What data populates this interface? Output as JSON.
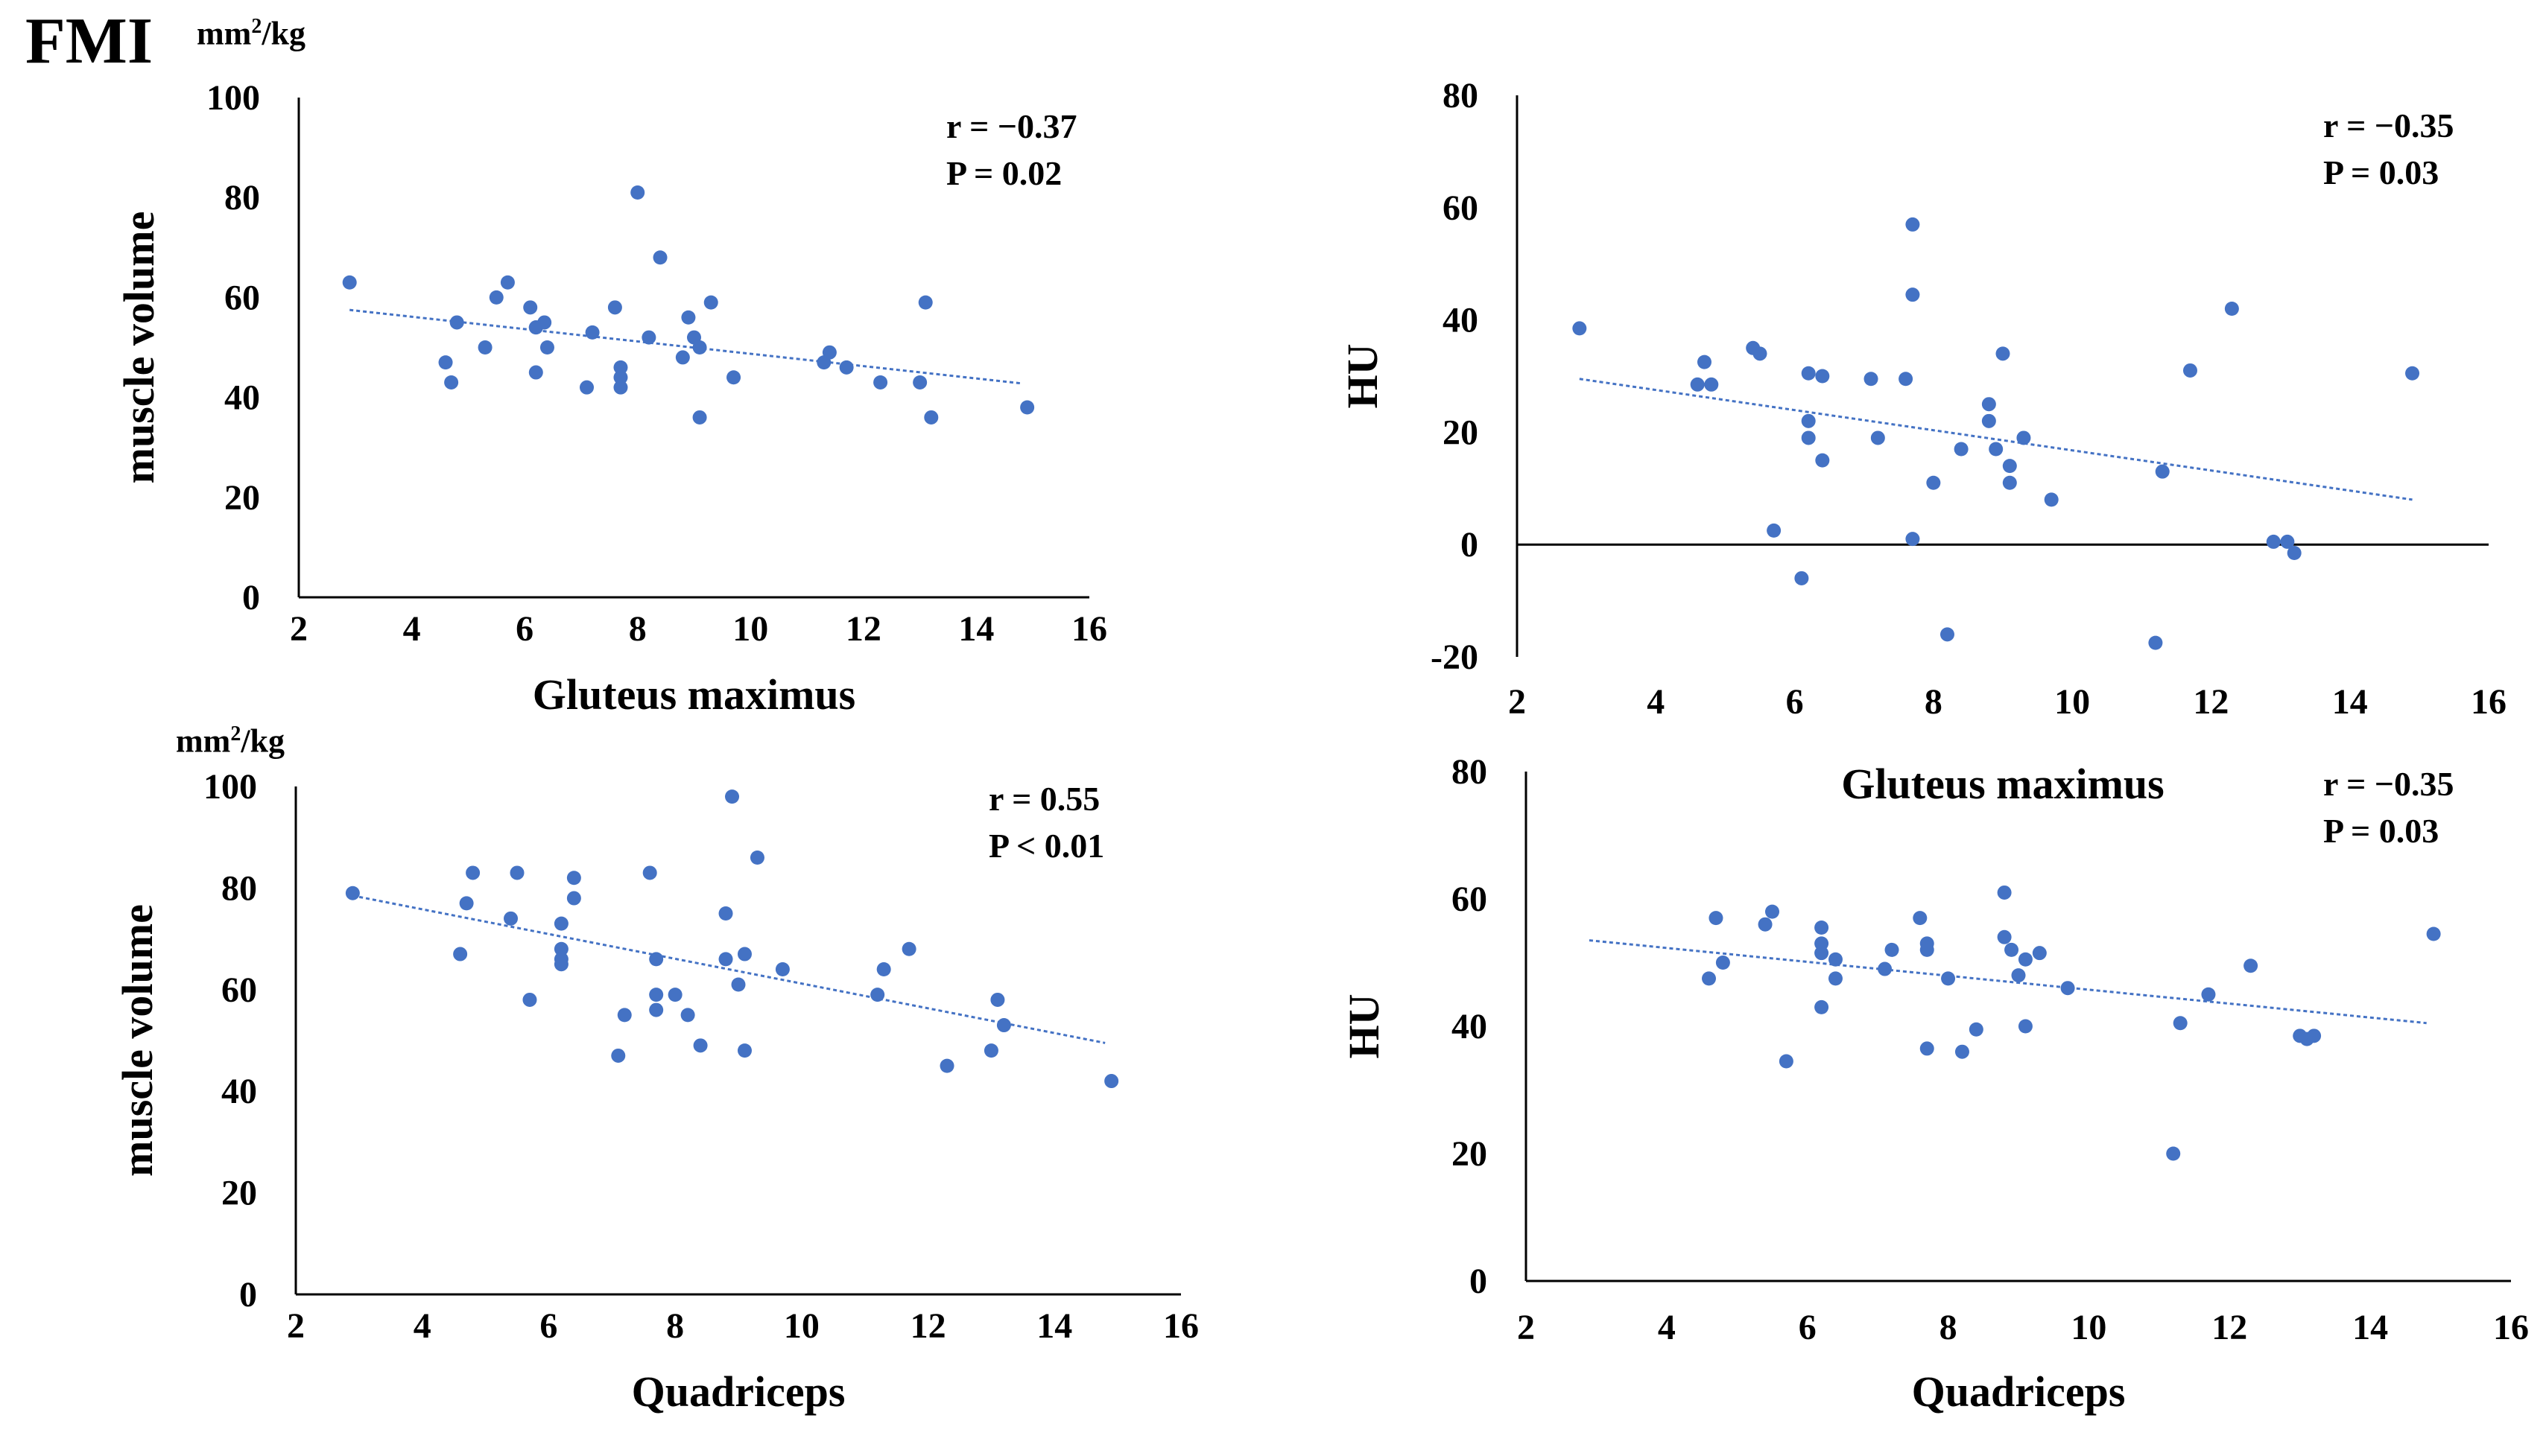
{
  "figure": {
    "label": "FMI"
  },
  "colors": {
    "point": "#4472C4",
    "trend": "#4472C4",
    "axis": "#000000"
  },
  "chart_data": [
    {
      "type": "scatter",
      "id": "p1",
      "xlabel": "Gluteus maximus",
      "ylabel": "muscle volume",
      "unit": "mm²/kg",
      "xlim": [
        2,
        16
      ],
      "ylim": [
        0,
        100
      ],
      "xticks": [
        2,
        4,
        6,
        8,
        10,
        12,
        14,
        16
      ],
      "yticks": [
        0,
        20,
        40,
        60,
        80,
        100
      ],
      "stats": {
        "r": "r = −0.37",
        "p": "P = 0.02"
      },
      "trendline": {
        "x": [
          2.9,
          14.8
        ],
        "y": [
          57.5,
          42.8
        ]
      },
      "points": {
        "x": [
          2.9,
          4.6,
          4.7,
          4.8,
          5.3,
          5.5,
          5.7,
          6.1,
          6.2,
          6.2,
          6.2,
          6.35,
          6.4,
          7.1,
          7.2,
          7.6,
          7.7,
          7.7,
          7.7,
          8.0,
          8.2,
          8.4,
          8.8,
          8.9,
          9.0,
          9.1,
          9.1,
          9.3,
          9.7,
          11.3,
          11.4,
          11.7,
          12.3,
          13.0,
          13.1,
          13.2,
          14.9
        ],
        "y": [
          63,
          47,
          43,
          55,
          50,
          60,
          63,
          58,
          54,
          54,
          45,
          55,
          50,
          42,
          53,
          58,
          46,
          44,
          42,
          81,
          52,
          68,
          48,
          56,
          52,
          50,
          36,
          59,
          44,
          47,
          49,
          46,
          43,
          43,
          59,
          36,
          38
        ]
      }
    },
    {
      "type": "scatter",
      "id": "p2",
      "xlabel": "Gluteus maximus",
      "ylabel": "HU",
      "xlim": [
        2,
        16
      ],
      "ylim": [
        -20,
        80
      ],
      "xticks": [
        2,
        4,
        6,
        8,
        10,
        12,
        14,
        16
      ],
      "yticks": [
        -20,
        0,
        20,
        40,
        60,
        80
      ],
      "stats": {
        "r": "r = −0.35",
        "p": "P = 0.03"
      },
      "trendline": {
        "x": [
          2.9,
          14.9
        ],
        "y": [
          29.5,
          8.0
        ]
      },
      "points": {
        "x": [
          2.9,
          4.6,
          4.7,
          4.8,
          5.4,
          5.5,
          5.7,
          6.1,
          6.2,
          6.2,
          6.2,
          6.4,
          6.4,
          7.1,
          7.2,
          7.6,
          7.7,
          7.7,
          7.7,
          8.0,
          8.2,
          8.4,
          8.8,
          8.8,
          8.9,
          9.0,
          9.1,
          9.1,
          9.3,
          9.7,
          11.2,
          11.3,
          11.7,
          12.3,
          12.9,
          13.1,
          13.2,
          14.9
        ],
        "y": [
          38.5,
          28.5,
          32.5,
          28.5,
          35,
          34,
          2.5,
          -6,
          30.5,
          22,
          19,
          30,
          15,
          29.5,
          19,
          29.5,
          57,
          44.5,
          1,
          11,
          -16,
          17,
          25,
          22,
          17,
          34,
          14,
          11,
          19,
          8,
          -17.5,
          13,
          31,
          42,
          0.5,
          0.5,
          -1.5,
          30.5
        ]
      }
    },
    {
      "type": "scatter",
      "id": "p3",
      "xlabel": "Quadriceps",
      "ylabel": "muscle volume",
      "unit": "mm²/kg",
      "xlim": [
        2,
        16
      ],
      "ylim": [
        0,
        100
      ],
      "xticks": [
        2,
        4,
        6,
        8,
        10,
        12,
        14,
        16
      ],
      "yticks": [
        0,
        20,
        40,
        60,
        80,
        100
      ],
      "stats": {
        "r": "r = 0.55",
        "p": "P < 0.01"
      },
      "trendline": {
        "x": [
          2.9,
          14.8
        ],
        "y": [
          78.5,
          49.5
        ]
      },
      "points": {
        "x": [
          2.9,
          4.6,
          4.7,
          4.8,
          5.4,
          5.5,
          5.7,
          6.2,
          6.2,
          6.2,
          6.2,
          6.4,
          6.4,
          7.1,
          7.2,
          7.6,
          7.7,
          7.7,
          7.7,
          8.0,
          8.2,
          8.4,
          8.8,
          8.8,
          8.9,
          9.0,
          9.1,
          9.1,
          9.3,
          9.7,
          11.2,
          11.3,
          11.7,
          12.3,
          13.0,
          13.1,
          13.2,
          14.9
        ],
        "y": [
          79,
          67,
          77,
          83,
          74,
          83,
          58,
          73,
          68,
          66,
          65,
          82,
          78,
          47,
          55,
          83,
          66,
          59,
          56,
          59,
          55,
          49,
          75,
          66,
          98,
          61,
          67,
          48,
          86,
          64,
          59,
          64,
          68,
          45,
          48,
          58,
          53,
          42
        ]
      }
    },
    {
      "type": "scatter",
      "id": "p4",
      "xlabel": "Quadriceps",
      "ylabel": "HU",
      "xlim": [
        2,
        16
      ],
      "ylim": [
        0,
        80
      ],
      "xticks": [
        2,
        4,
        6,
        8,
        10,
        12,
        14,
        16
      ],
      "yticks": [
        0,
        20,
        40,
        60,
        80
      ],
      "stats": {
        "r": "r = −0.35",
        "p": "P = 0.03"
      },
      "trendline": {
        "x": [
          2.9,
          14.8
        ],
        "y": [
          53.5,
          40.5
        ]
      },
      "points": {
        "x": [
          4.6,
          4.7,
          4.8,
          5.4,
          5.5,
          5.7,
          6.2,
          6.2,
          6.2,
          6.2,
          6.4,
          6.4,
          7.1,
          7.2,
          7.6,
          7.7,
          7.7,
          7.7,
          8.0,
          8.2,
          8.4,
          8.8,
          8.8,
          8.9,
          9.0,
          9.1,
          9.1,
          9.3,
          9.7,
          11.2,
          11.3,
          11.7,
          12.3,
          13.0,
          13.1,
          13.2,
          14.9
        ],
        "y": [
          47.5,
          57,
          50,
          56,
          58,
          34.5,
          55.5,
          53,
          51.5,
          43,
          50.5,
          47.5,
          49,
          52,
          57,
          53,
          52,
          36.5,
          47.5,
          36,
          39.5,
          61,
          54,
          52,
          48,
          40,
          50.5,
          51.5,
          46,
          20,
          40.5,
          45,
          49.5,
          38.5,
          38,
          38.5,
          54.5
        ]
      }
    }
  ]
}
